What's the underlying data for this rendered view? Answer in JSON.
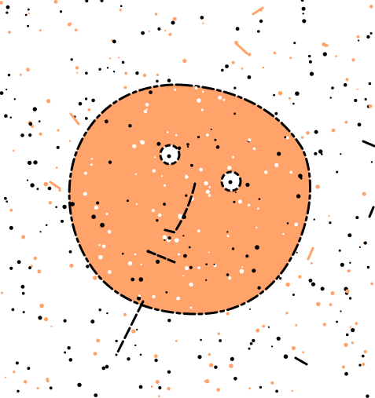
{
  "colors": {
    "background": "#ffffff",
    "face_fill": "#ffa36b",
    "outline": "#000000",
    "speckle_dark": "#000000",
    "speckle_accent": "#ffa36b",
    "speckle_light": "#ffffff"
  },
  "scene": {
    "subject": "doodle-face",
    "parts": [
      "face",
      "left-eye",
      "right-eye",
      "nose",
      "mouth",
      "neck-stroke"
    ]
  }
}
